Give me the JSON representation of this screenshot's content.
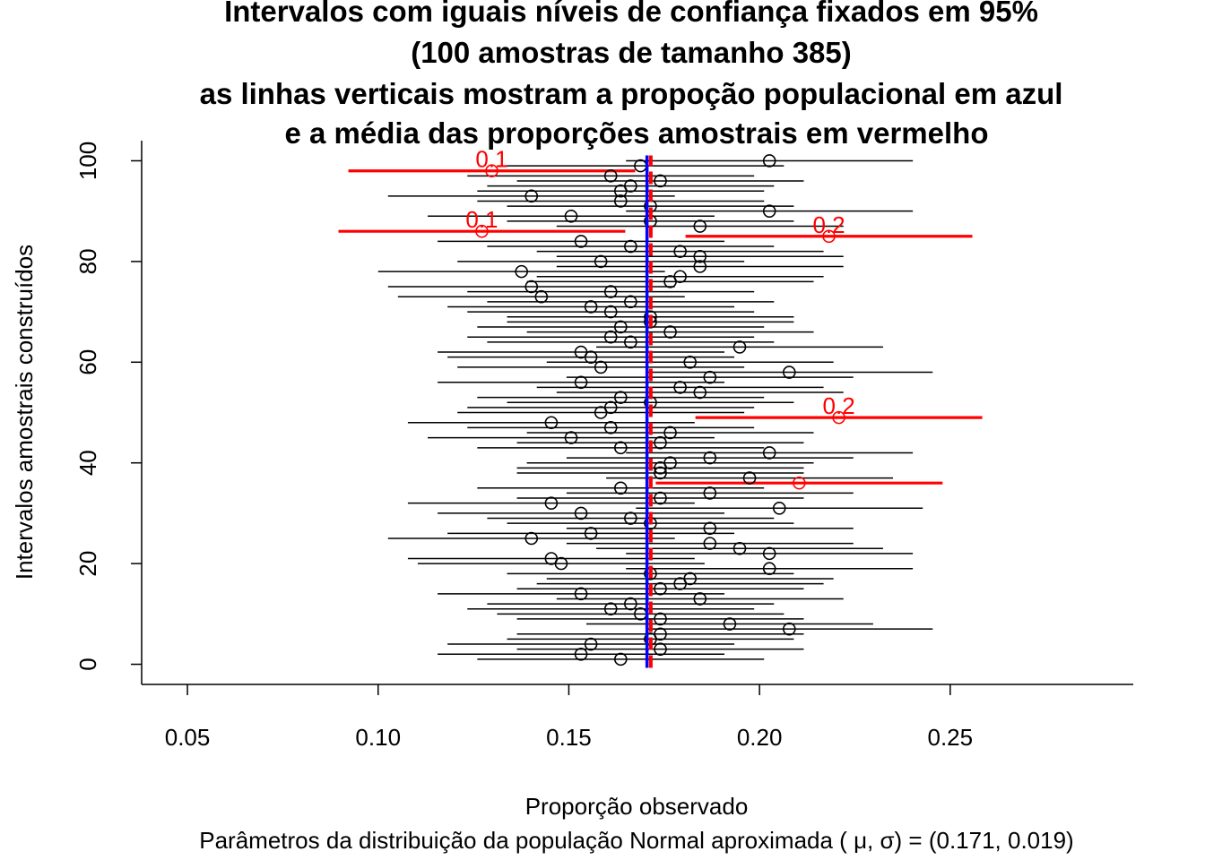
{
  "chart_data": {
    "type": "scatter",
    "title_lines": [
      "Intervalos com iguais níveis de confiança fixados em 95%",
      "(100 amostras de tamanho 385)",
      "as linhas verticais mostram a propoção populacional em azul",
      "e a média das proporções amostrais em vermelho"
    ],
    "xlabel": "Proporção observado",
    "subtitle": "Parâmetros da distribuição da população Normal aproximada ( μ, σ) = (0.171, 0.019)",
    "ylabel": "Intervalos amostrais construídos",
    "xlim": [
      0.038,
      0.298
    ],
    "ylim": [
      -4,
      104
    ],
    "x_ticks": [
      0.05,
      0.1,
      0.15,
      0.2,
      0.25
    ],
    "x_tick_labels": [
      "0.05",
      "0.10",
      "0.15",
      "0.20",
      "0.25"
    ],
    "y_ticks": [
      0,
      20,
      40,
      60,
      80,
      100
    ],
    "y_tick_labels": [
      "0",
      "20",
      "40",
      "60",
      "80",
      "100"
    ],
    "population_proportion": 0.1705,
    "mean_sample_proportion": 0.1715,
    "half_width": 0.0376,
    "colors": {
      "intervals": "#000000",
      "missed": "#ff0000",
      "population_line": "#0000ff",
      "mean_line": "#ff0000"
    },
    "missed_labels": {
      "86": "0.1",
      "98": "0.1",
      "85": "0.2",
      "49": "0.2"
    },
    "samples": [
      {
        "id": 1,
        "p": 0.1636
      },
      {
        "id": 2,
        "p": 0.1532
      },
      {
        "id": 3,
        "p": 0.174
      },
      {
        "id": 4,
        "p": 0.1558
      },
      {
        "id": 5,
        "p": 0.1714
      },
      {
        "id": 6,
        "p": 0.174
      },
      {
        "id": 7,
        "p": 0.2078
      },
      {
        "id": 8,
        "p": 0.1922
      },
      {
        "id": 9,
        "p": 0.174
      },
      {
        "id": 10,
        "p": 0.1688
      },
      {
        "id": 11,
        "p": 0.161
      },
      {
        "id": 12,
        "p": 0.1662
      },
      {
        "id": 13,
        "p": 0.1844
      },
      {
        "id": 14,
        "p": 0.1532
      },
      {
        "id": 15,
        "p": 0.174
      },
      {
        "id": 16,
        "p": 0.1792
      },
      {
        "id": 17,
        "p": 0.1818
      },
      {
        "id": 18,
        "p": 0.1714
      },
      {
        "id": 19,
        "p": 0.2026
      },
      {
        "id": 20,
        "p": 0.148
      },
      {
        "id": 21,
        "p": 0.1454
      },
      {
        "id": 22,
        "p": 0.2026
      },
      {
        "id": 23,
        "p": 0.1948
      },
      {
        "id": 24,
        "p": 0.187
      },
      {
        "id": 25,
        "p": 0.1402
      },
      {
        "id": 26,
        "p": 0.1558
      },
      {
        "id": 27,
        "p": 0.187
      },
      {
        "id": 28,
        "p": 0.1714
      },
      {
        "id": 29,
        "p": 0.1662
      },
      {
        "id": 30,
        "p": 0.1532
      },
      {
        "id": 31,
        "p": 0.2052
      },
      {
        "id": 32,
        "p": 0.1454
      },
      {
        "id": 33,
        "p": 0.174
      },
      {
        "id": 34,
        "p": 0.187
      },
      {
        "id": 35,
        "p": 0.1636
      },
      {
        "id": 36,
        "p": 0.2104
      },
      {
        "id": 37,
        "p": 0.1974
      },
      {
        "id": 38,
        "p": 0.174
      },
      {
        "id": 39,
        "p": 0.174
      },
      {
        "id": 40,
        "p": 0.1766
      },
      {
        "id": 41,
        "p": 0.187
      },
      {
        "id": 42,
        "p": 0.2026
      },
      {
        "id": 43,
        "p": 0.1636
      },
      {
        "id": 44,
        "p": 0.174
      },
      {
        "id": 45,
        "p": 0.1506
      },
      {
        "id": 46,
        "p": 0.1766
      },
      {
        "id": 47,
        "p": 0.161
      },
      {
        "id": 48,
        "p": 0.1454
      },
      {
        "id": 49,
        "p": 0.2208
      },
      {
        "id": 50,
        "p": 0.1584
      },
      {
        "id": 51,
        "p": 0.161
      },
      {
        "id": 52,
        "p": 0.1714
      },
      {
        "id": 53,
        "p": 0.1636
      },
      {
        "id": 54,
        "p": 0.1844
      },
      {
        "id": 55,
        "p": 0.1792
      },
      {
        "id": 56,
        "p": 0.1532
      },
      {
        "id": 57,
        "p": 0.187
      },
      {
        "id": 58,
        "p": 0.2078
      },
      {
        "id": 59,
        "p": 0.1584
      },
      {
        "id": 60,
        "p": 0.1818
      },
      {
        "id": 61,
        "p": 0.1558
      },
      {
        "id": 62,
        "p": 0.1532
      },
      {
        "id": 63,
        "p": 0.1948
      },
      {
        "id": 64,
        "p": 0.1662
      },
      {
        "id": 65,
        "p": 0.161
      },
      {
        "id": 66,
        "p": 0.1766
      },
      {
        "id": 67,
        "p": 0.1636
      },
      {
        "id": 68,
        "p": 0.1714
      },
      {
        "id": 69,
        "p": 0.1714
      },
      {
        "id": 70,
        "p": 0.161
      },
      {
        "id": 71,
        "p": 0.1558
      },
      {
        "id": 72,
        "p": 0.1662
      },
      {
        "id": 73,
        "p": 0.1428
      },
      {
        "id": 74,
        "p": 0.161
      },
      {
        "id": 75,
        "p": 0.1402
      },
      {
        "id": 76,
        "p": 0.1766
      },
      {
        "id": 77,
        "p": 0.1792
      },
      {
        "id": 78,
        "p": 0.1376
      },
      {
        "id": 79,
        "p": 0.1844
      },
      {
        "id": 80,
        "p": 0.1584
      },
      {
        "id": 81,
        "p": 0.1844
      },
      {
        "id": 82,
        "p": 0.1792
      },
      {
        "id": 83,
        "p": 0.1662
      },
      {
        "id": 84,
        "p": 0.1532
      },
      {
        "id": 85,
        "p": 0.2182
      },
      {
        "id": 86,
        "p": 0.1272
      },
      {
        "id": 87,
        "p": 0.1844
      },
      {
        "id": 88,
        "p": 0.1714
      },
      {
        "id": 89,
        "p": 0.1506
      },
      {
        "id": 90,
        "p": 0.2026
      },
      {
        "id": 91,
        "p": 0.1714
      },
      {
        "id": 92,
        "p": 0.1636
      },
      {
        "id": 93,
        "p": 0.1402
      },
      {
        "id": 94,
        "p": 0.1636
      },
      {
        "id": 95,
        "p": 0.1662
      },
      {
        "id": 96,
        "p": 0.174
      },
      {
        "id": 97,
        "p": 0.161
      },
      {
        "id": 98,
        "p": 0.1298
      },
      {
        "id": 99,
        "p": 0.1688
      },
      {
        "id": 100,
        "p": 0.2026
      }
    ]
  }
}
